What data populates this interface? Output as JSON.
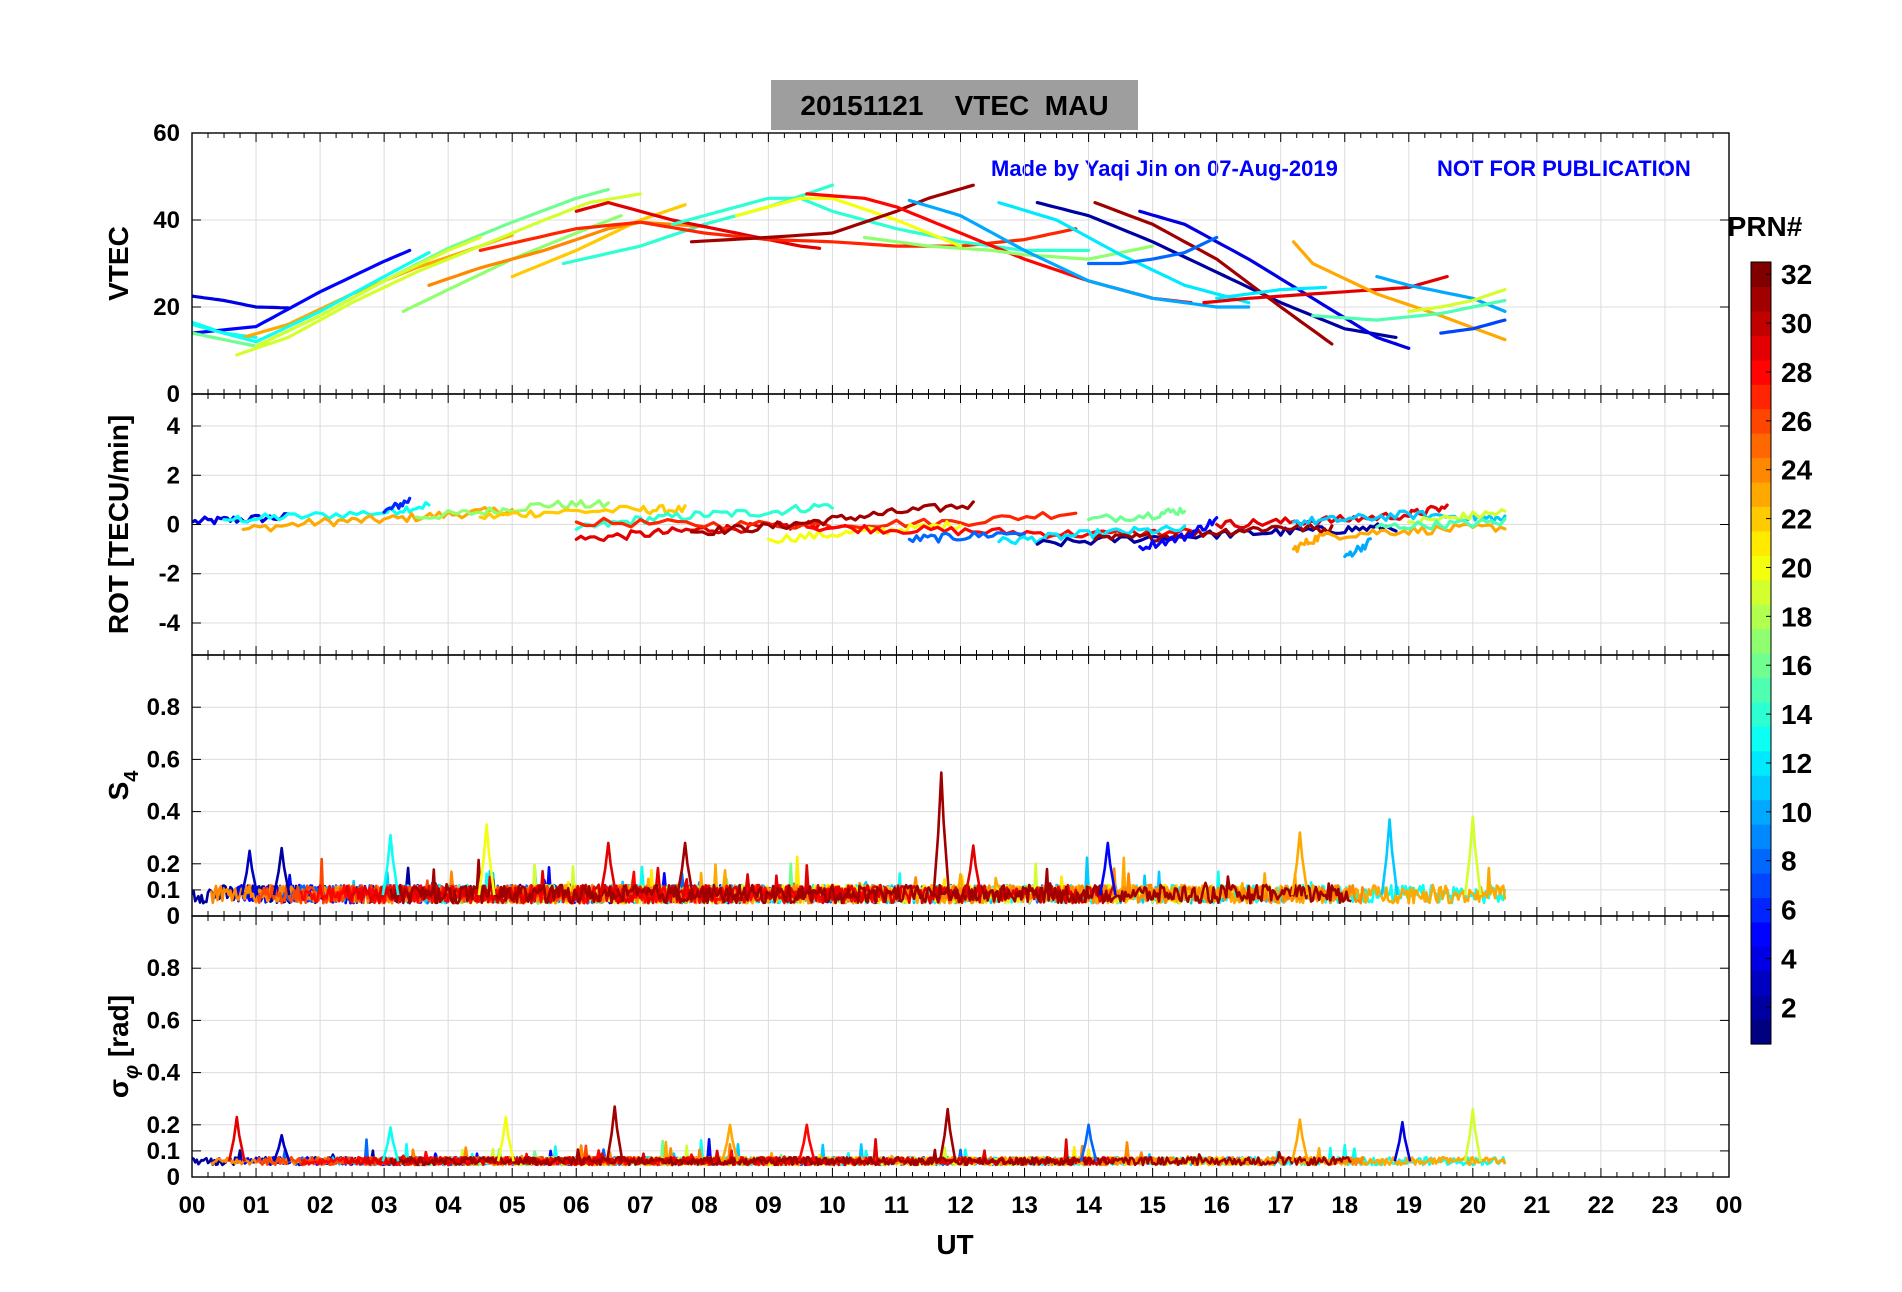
{
  "figure": {
    "title": "20151121    VTEC  MAU",
    "credit": "Made by Yaqi Jin on 07-Aug-2019",
    "notice": "NOT FOR PUBLICATION",
    "colorbar_label": "PRN#",
    "colorbar_ticks": [
      "2",
      "4",
      "6",
      "8",
      "10",
      "12",
      "14",
      "16",
      "18",
      "20",
      "22",
      "24",
      "26",
      "28",
      "30",
      "32"
    ],
    "x_axis_label": "UT",
    "x_ticks": [
      "00",
      "01",
      "02",
      "03",
      "04",
      "05",
      "06",
      "07",
      "08",
      "09",
      "10",
      "11",
      "12",
      "13",
      "14",
      "15",
      "16",
      "17",
      "18",
      "19",
      "20",
      "21",
      "22",
      "23",
      "00"
    ],
    "colors": {
      "title_box": "#9e9e9e",
      "annotation": "#0000ff",
      "colormap": "jet"
    }
  },
  "chart_data": [
    {
      "type": "line",
      "panel": "vtec",
      "ylabel": "VTEC",
      "ylim": [
        0,
        60
      ],
      "yticks": [
        "0",
        "20",
        "40",
        "60"
      ],
      "xlim": [
        0,
        24
      ],
      "xunit": "UT hours",
      "series": [
        {
          "prn": 4,
          "x": [
            0.0,
            0.5,
            1.0,
            1.5
          ],
          "y": [
            22.5,
            21.5,
            20.0,
            19.8
          ]
        },
        {
          "prn": 13,
          "x": [
            0.0,
            0.5,
            1.0
          ],
          "y": [
            16.5,
            14.0,
            13.0
          ]
        },
        {
          "prn": 5,
          "x": [
            0.0,
            1.0,
            2.0,
            3.0,
            3.4
          ],
          "y": [
            14.0,
            15.5,
            23.5,
            30.5,
            33.0
          ]
        },
        {
          "prn": 23,
          "x": [
            0.8,
            1.5,
            2.5,
            3.5,
            4.5,
            5.0
          ],
          "y": [
            13.0,
            16.0,
            23.0,
            29.0,
            34.0,
            36.5
          ]
        },
        {
          "prn": 16,
          "x": [
            0.0,
            1.0,
            2.0,
            3.0,
            4.0,
            5.0,
            6.0,
            6.5
          ],
          "y": [
            14.0,
            11.0,
            18.0,
            26.0,
            33.5,
            39.5,
            45.0,
            47.0
          ]
        },
        {
          "prn": 19,
          "x": [
            0.7,
            1.5,
            2.5,
            3.5,
            4.5,
            5.5,
            6.2,
            7.0
          ],
          "y": [
            9.0,
            13.0,
            21.0,
            28.0,
            34.0,
            40.0,
            44.0,
            46.0
          ]
        },
        {
          "prn": 13,
          "x": [
            0.0,
            1.0,
            2.0,
            3.0,
            3.7
          ],
          "y": [
            16.0,
            12.0,
            19.0,
            27.0,
            32.5
          ]
        },
        {
          "prn": 19,
          "x": [
            1.0,
            2.0,
            3.0,
            4.0,
            4.5
          ],
          "y": [
            11.0,
            18.0,
            26.0,
            33.0,
            36.0
          ]
        },
        {
          "prn": 17,
          "x": [
            3.3,
            4.0,
            5.0,
            6.0,
            6.7
          ],
          "y": [
            19.0,
            24.0,
            31.0,
            37.0,
            41.0
          ]
        },
        {
          "prn": 22,
          "x": [
            5.0,
            6.0,
            7.0,
            7.7
          ],
          "y": [
            27.0,
            33.0,
            40.0,
            43.5
          ]
        },
        {
          "prn": 14,
          "x": [
            5.8,
            7.0,
            8.0,
            9.0,
            10.0
          ],
          "y": [
            30.0,
            34.0,
            39.0,
            43.0,
            48.0
          ]
        },
        {
          "prn": 24,
          "x": [
            3.7,
            4.5,
            5.5,
            6.5,
            7.0,
            8.0
          ],
          "y": [
            25.0,
            29.0,
            33.0,
            38.0,
            39.5,
            38.5
          ]
        },
        {
          "prn": 29,
          "x": [
            6.0,
            6.5,
            7.5,
            8.5,
            9.5,
            9.8
          ],
          "y": [
            42.0,
            44.0,
            40.0,
            37.0,
            34.0,
            33.5
          ]
        },
        {
          "prn": 27,
          "x": [
            4.5,
            6.0,
            7.0,
            8.0,
            9.0,
            10.0,
            11.0,
            12.0,
            13.0,
            13.8
          ],
          "y": [
            33.0,
            38.0,
            39.5,
            37.0,
            35.5,
            35.0,
            34.0,
            34.0,
            35.5,
            38.0
          ]
        },
        {
          "prn": 14,
          "x": [
            7.5,
            8.5,
            9.0,
            9.5,
            10.0,
            11.0,
            12.0,
            13.0,
            14.0
          ],
          "y": [
            39.0,
            43.0,
            45.0,
            45.0,
            42.0,
            38.0,
            35.0,
            33.0,
            33.0
          ]
        },
        {
          "prn": 20,
          "x": [
            8.5,
            9.5,
            10.0,
            11.0,
            12.0
          ],
          "y": [
            41.0,
            45.0,
            45.0,
            40.0,
            34.0
          ]
        },
        {
          "prn": 31,
          "x": [
            7.8,
            9.0,
            10.0,
            11.0,
            11.5,
            12.2
          ],
          "y": [
            35.0,
            36.0,
            37.0,
            42.0,
            45.0,
            48.0
          ]
        },
        {
          "prn": 28,
          "x": [
            9.6,
            10.5,
            11.0,
            12.0,
            13.0,
            14.0,
            15.0,
            15.6
          ],
          "y": [
            46.0,
            45.0,
            43.0,
            37.0,
            31.0,
            26.0,
            22.0,
            21.0
          ]
        },
        {
          "prn": 17,
          "x": [
            10.5,
            11.5,
            12.5,
            13.0,
            14.0,
            15.0
          ],
          "y": [
            36.0,
            34.0,
            33.0,
            32.0,
            31.0,
            34.0
          ]
        },
        {
          "prn": 10,
          "x": [
            11.2,
            12.0,
            13.0,
            14.0,
            15.0,
            16.0,
            16.5
          ],
          "y": [
            44.5,
            41.0,
            33.0,
            26.0,
            22.0,
            20.0,
            20.0
          ]
        },
        {
          "prn": 12,
          "x": [
            12.6,
            13.5,
            14.5,
            15.5,
            16.5
          ],
          "y": [
            44.0,
            40.0,
            32.0,
            25.0,
            21.0
          ]
        },
        {
          "prn": 2,
          "x": [
            13.2,
            14.0,
            15.0,
            16.0,
            17.0,
            18.0,
            18.8
          ],
          "y": [
            44.0,
            41.0,
            35.0,
            28.0,
            21.0,
            15.0,
            13.0
          ]
        },
        {
          "prn": 31,
          "x": [
            14.1,
            15.0,
            16.0,
            17.0,
            17.8
          ],
          "y": [
            44.0,
            39.0,
            31.0,
            20.0,
            11.5
          ]
        },
        {
          "prn": 4,
          "x": [
            14.8,
            15.5,
            16.5,
            17.5,
            18.5,
            19.0
          ],
          "y": [
            42.0,
            39.0,
            31.0,
            22.0,
            13.0,
            10.5
          ]
        },
        {
          "prn": 8,
          "x": [
            14.0,
            14.5,
            15.0,
            15.5,
            16.0
          ],
          "y": [
            30.0,
            30.0,
            31.0,
            32.5,
            36.0
          ]
        },
        {
          "prn": 29,
          "x": [
            15.8,
            16.5,
            17.5,
            18.5,
            19.0,
            19.6
          ],
          "y": [
            21.0,
            22.0,
            23.0,
            24.0,
            24.5,
            27.0
          ]
        },
        {
          "prn": 23,
          "x": [
            17.2,
            17.5,
            18.5,
            19.5,
            20.5
          ],
          "y": [
            35.0,
            30.0,
            23.0,
            18.0,
            12.5
          ]
        },
        {
          "prn": 10,
          "x": [
            18.5,
            19.0,
            20.0,
            20.5
          ],
          "y": [
            27.0,
            25.0,
            22.0,
            19.0
          ]
        },
        {
          "prn": 19,
          "x": [
            19.0,
            19.5,
            20.0,
            20.5
          ],
          "y": [
            19.0,
            20.0,
            21.5,
            24.0
          ]
        },
        {
          "prn": 15,
          "x": [
            17.5,
            18.5,
            19.5,
            20.5
          ],
          "y": [
            18.0,
            17.0,
            18.5,
            21.5
          ]
        },
        {
          "prn": 12,
          "x": [
            16.0,
            17.0,
            17.7
          ],
          "y": [
            22.0,
            24.0,
            24.5
          ]
        },
        {
          "prn": 7,
          "x": [
            19.5,
            20.0,
            20.5
          ],
          "y": [
            14.0,
            15.0,
            17.0
          ]
        }
      ]
    },
    {
      "type": "line",
      "panel": "rot",
      "ylabel": "ROT [TECU/min]",
      "ylim": [
        -5.3,
        5.3
      ],
      "yticks": [
        "-4",
        "-2",
        "0",
        "2",
        "4"
      ],
      "xlim": [
        0,
        24
      ],
      "series": [
        {
          "prn": 4,
          "x": [
            0.0,
            0.7,
            1.5
          ],
          "y": [
            0.1,
            0.2,
            0.3
          ]
        },
        {
          "prn": 13,
          "x": [
            0.5,
            1.5,
            3.0,
            3.7
          ],
          "y": [
            0.2,
            0.3,
            0.5,
            0.8
          ]
        },
        {
          "prn": 23,
          "x": [
            0.8,
            2.0,
            3.0,
            4.0,
            5.0
          ],
          "y": [
            -0.2,
            0.1,
            0.2,
            0.4,
            0.6
          ]
        },
        {
          "prn": 6,
          "x": [
            3.0,
            3.4
          ],
          "y": [
            0.5,
            1.0
          ]
        },
        {
          "prn": 17,
          "x": [
            3.5,
            4.5,
            5.5,
            6.5
          ],
          "y": [
            0.3,
            0.5,
            0.8,
            0.8
          ]
        },
        {
          "prn": 22,
          "x": [
            4.5,
            5.5,
            7.0,
            7.7
          ],
          "y": [
            0.3,
            0.5,
            0.6,
            0.6
          ]
        },
        {
          "prn": 14,
          "x": [
            6.0,
            7.0,
            8.0,
            9.0,
            10.0
          ],
          "y": [
            -0.2,
            0.2,
            0.4,
            0.5,
            0.8
          ]
        },
        {
          "prn": 29,
          "x": [
            6.0,
            7.0,
            8.0,
            9.0,
            9.8
          ],
          "y": [
            -0.6,
            -0.4,
            -0.2,
            -0.1,
            0.0
          ]
        },
        {
          "prn": 27,
          "x": [
            6.0,
            8.0,
            10.0,
            12.0,
            13.8
          ],
          "y": [
            0.1,
            0.0,
            0.0,
            0.1,
            0.5
          ]
        },
        {
          "prn": 31,
          "x": [
            7.8,
            9.0,
            10.0,
            11.0,
            12.2
          ],
          "y": [
            -0.3,
            -0.1,
            0.2,
            0.5,
            0.8
          ]
        },
        {
          "prn": 20,
          "x": [
            9.0,
            10.0,
            11.0,
            12.0
          ],
          "y": [
            -0.6,
            -0.4,
            -0.2,
            0.0
          ]
        },
        {
          "prn": 28,
          "x": [
            9.6,
            11.0,
            12.5,
            14.0,
            15.6
          ],
          "y": [
            -0.1,
            -0.2,
            -0.3,
            -0.4,
            -0.3
          ]
        },
        {
          "prn": 8,
          "x": [
            11.2,
            12.0,
            13.0
          ],
          "y": [
            -0.6,
            -0.5,
            -0.3
          ]
        },
        {
          "prn": 12,
          "x": [
            12.6,
            13.5,
            14.5,
            15.5
          ],
          "y": [
            -0.7,
            -0.5,
            -0.3,
            -0.2
          ]
        },
        {
          "prn": 2,
          "x": [
            13.2,
            14.5,
            16.0,
            17.0,
            18.0,
            18.8
          ],
          "y": [
            -0.8,
            -0.6,
            -0.4,
            -0.3,
            -0.2,
            -0.1
          ]
        },
        {
          "prn": 31,
          "x": [
            14.1,
            15.0,
            16.0,
            17.0,
            17.8
          ],
          "y": [
            -0.6,
            -0.5,
            -0.3,
            -0.1,
            -0.2
          ]
        },
        {
          "prn": 5,
          "x": [
            14.8,
            15.5,
            16.0
          ],
          "y": [
            -0.9,
            -0.5,
            0.2
          ]
        },
        {
          "prn": 16,
          "x": [
            14.0,
            15.0,
            15.5
          ],
          "y": [
            0.2,
            0.4,
            0.6
          ]
        },
        {
          "prn": 29,
          "x": [
            16.0,
            17.0,
            18.0,
            19.0,
            19.6
          ],
          "y": [
            0.0,
            0.1,
            0.2,
            0.4,
            0.7
          ]
        },
        {
          "prn": 23,
          "x": [
            17.2,
            17.6,
            18.5,
            19.5,
            20.5
          ],
          "y": [
            -1.0,
            -0.5,
            -0.3,
            -0.2,
            -0.1
          ]
        },
        {
          "prn": 11,
          "x": [
            17.2,
            18.0,
            19.0,
            20.0,
            20.5
          ],
          "y": [
            0.1,
            0.2,
            0.4,
            0.3,
            0.2
          ]
        },
        {
          "prn": 10,
          "x": [
            18.0,
            18.4
          ],
          "y": [
            -1.3,
            -0.7
          ]
        },
        {
          "prn": 19,
          "x": [
            19.0,
            19.8,
            20.5
          ],
          "y": [
            0.1,
            0.3,
            0.5
          ]
        },
        {
          "prn": 15,
          "x": [
            18.5,
            19.5,
            20.5
          ],
          "y": [
            -0.1,
            0.0,
            0.1
          ]
        }
      ]
    },
    {
      "type": "line",
      "panel": "s4",
      "ylabel": "S4",
      "ylim": [
        0,
        1.0
      ],
      "yticks": [
        "0",
        "0.1",
        "0.2",
        "0.4",
        "0.6",
        "0.8"
      ],
      "xlim": [
        0,
        24
      ],
      "description": "Amplitude scintillation index for all PRNs; background ~0.05–0.1, bursts to ~0.25–0.35, peak ~0.55 near 11.7 UT",
      "spikes": [
        {
          "prn": 3,
          "x": 0.9,
          "y": 0.25
        },
        {
          "prn": 2,
          "x": 1.4,
          "y": 0.26
        },
        {
          "prn": 13,
          "x": 3.1,
          "y": 0.31
        },
        {
          "prn": 20,
          "x": 4.6,
          "y": 0.35
        },
        {
          "prn": 29,
          "x": 6.5,
          "y": 0.28
        },
        {
          "prn": 31,
          "x": 7.7,
          "y": 0.28
        },
        {
          "prn": 31,
          "x": 11.7,
          "y": 0.55
        },
        {
          "prn": 29,
          "x": 12.2,
          "y": 0.27
        },
        {
          "prn": 5,
          "x": 14.3,
          "y": 0.28
        },
        {
          "prn": 23,
          "x": 17.3,
          "y": 0.32
        },
        {
          "prn": 11,
          "x": 18.7,
          "y": 0.37
        },
        {
          "prn": 19,
          "x": 20.0,
          "y": 0.38
        }
      ]
    },
    {
      "type": "line",
      "panel": "sigma_phi",
      "ylabel": "σφ [rad]",
      "ylim": [
        0,
        1.0
      ],
      "yticks": [
        "0",
        "0.1",
        "0.2",
        "0.4",
        "0.6",
        "0.8"
      ],
      "xlim": [
        0,
        24
      ],
      "description": "Phase scintillation index for all PRNs; background ~0.05–0.08, bursts to ~0.15–0.25",
      "spikes": [
        {
          "prn": 29,
          "x": 0.7,
          "y": 0.23
        },
        {
          "prn": 3,
          "x": 1.4,
          "y": 0.16
        },
        {
          "prn": 13,
          "x": 3.1,
          "y": 0.19
        },
        {
          "prn": 20,
          "x": 4.9,
          "y": 0.23
        },
        {
          "prn": 31,
          "x": 6.6,
          "y": 0.27
        },
        {
          "prn": 23,
          "x": 8.4,
          "y": 0.2
        },
        {
          "prn": 28,
          "x": 9.6,
          "y": 0.2
        },
        {
          "prn": 31,
          "x": 11.8,
          "y": 0.26
        },
        {
          "prn": 8,
          "x": 14.0,
          "y": 0.2
        },
        {
          "prn": 23,
          "x": 17.3,
          "y": 0.22
        },
        {
          "prn": 4,
          "x": 18.9,
          "y": 0.21
        },
        {
          "prn": 19,
          "x": 20.0,
          "y": 0.26
        }
      ]
    }
  ]
}
